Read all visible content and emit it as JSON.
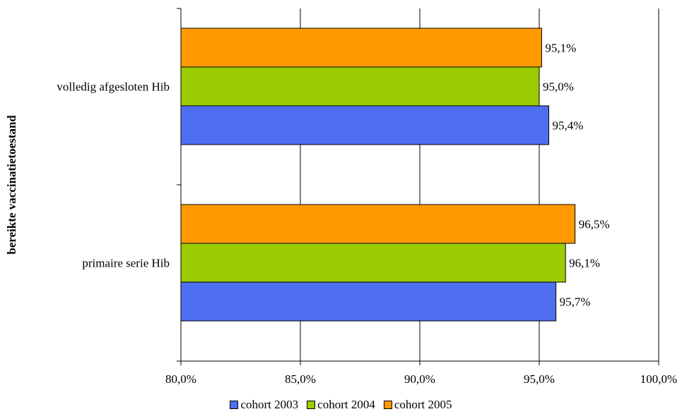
{
  "chart_data": {
    "type": "bar",
    "orientation": "horizontal",
    "ylabel": "bereikte vaccinatietoestand",
    "categories": [
      "volledig afgesloten Hib",
      "primaire serie Hib"
    ],
    "series": [
      {
        "name": "cohort 2003",
        "color": "#4F6FF0",
        "values": [
          95.4,
          95.7
        ],
        "labels": [
          "95,4%",
          "95,7%"
        ]
      },
      {
        "name": "cohort 2004",
        "color": "#99CC00",
        "values": [
          95.0,
          96.1
        ],
        "labels": [
          "95,0%",
          "96,1%"
        ]
      },
      {
        "name": "cohort 2005",
        "color": "#FF9900",
        "values": [
          95.1,
          96.5
        ],
        "labels": [
          "95,1%",
          "96,5%"
        ]
      }
    ],
    "xlim": [
      80,
      100
    ],
    "xticks": [
      80,
      85,
      90,
      95,
      100
    ],
    "xtick_labels": [
      "80,0%",
      "85,0%",
      "90,0%",
      "95,0%",
      "100,0%"
    ],
    "grid": "vertical",
    "legend_position": "bottom"
  }
}
